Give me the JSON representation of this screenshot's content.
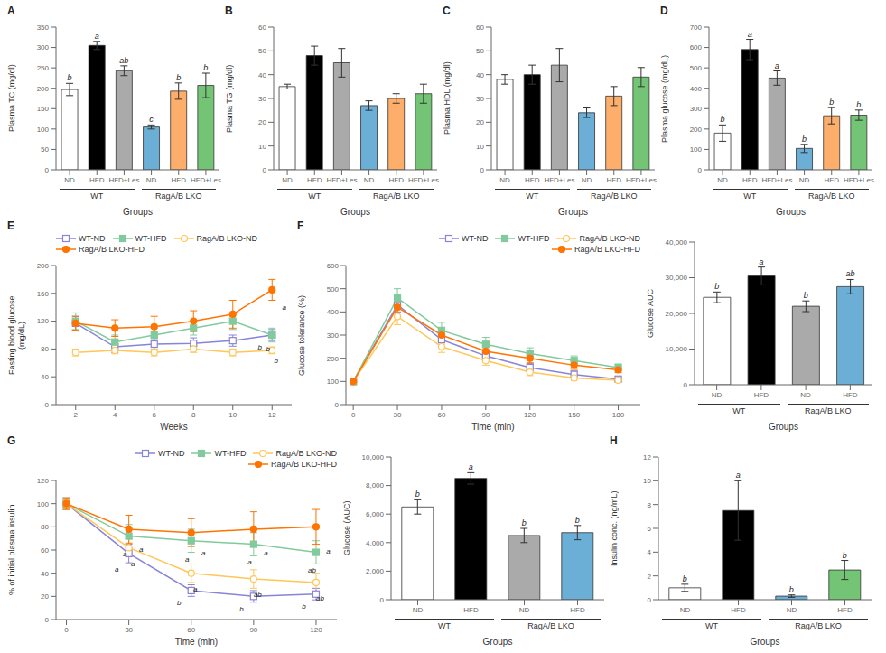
{
  "chart_data": [
    {
      "type": "bar",
      "title": "A",
      "ylabel": "Plasma TC (mg/dl)",
      "xlabel": "Groups",
      "categories": [
        "ND",
        "HFD",
        "HFD+Les",
        "ND",
        "HFD",
        "HFD+Les"
      ],
      "values": [
        197,
        305,
        243,
        105,
        193,
        207
      ],
      "errors": [
        15,
        10,
        12,
        5,
        20,
        30
      ],
      "annotations": [
        "b",
        "a",
        "ab",
        "c",
        "b",
        "b"
      ],
      "groups": [
        "WT",
        "RagA/B LKO"
      ],
      "colors": [
        "#ffffff",
        "#000000",
        "#aaaaaa",
        "#6baed6",
        "#fdae6b",
        "#74c476"
      ],
      "ylim": [
        0,
        350
      ],
      "yticks": [
        0,
        50,
        100,
        150,
        200,
        250,
        300,
        350
      ]
    },
    {
      "type": "bar",
      "title": "B",
      "ylabel": "Plasma TG (mg/dl)",
      "xlabel": "Groups",
      "categories": [
        "ND",
        "HFD",
        "HFD+Les",
        "ND",
        "HFD",
        "HFD+Les"
      ],
      "values": [
        35,
        48,
        45,
        27,
        30,
        32
      ],
      "errors": [
        1,
        4,
        6,
        2,
        2,
        4
      ],
      "groups": [
        "WT",
        "RagA/B LKO"
      ],
      "colors": [
        "#ffffff",
        "#000000",
        "#aaaaaa",
        "#6baed6",
        "#fdae6b",
        "#74c476"
      ],
      "ylim": [
        0,
        60
      ],
      "yticks": [
        0,
        10,
        20,
        30,
        40,
        50,
        60
      ]
    },
    {
      "type": "bar",
      "title": "C",
      "ylabel": "Plasma HDL (mg/dl)",
      "xlabel": "Groups",
      "categories": [
        "ND",
        "HFD",
        "HFD+Les",
        "ND",
        "HFD",
        "HFD+Les"
      ],
      "values": [
        38,
        40,
        44,
        24,
        31,
        39
      ],
      "errors": [
        2,
        4,
        7,
        2,
        4,
        4
      ],
      "groups": [
        "WT",
        "RagA/B LKO"
      ],
      "colors": [
        "#ffffff",
        "#000000",
        "#aaaaaa",
        "#6baed6",
        "#fdae6b",
        "#74c476"
      ],
      "ylim": [
        0,
        60
      ],
      "yticks": [
        0,
        10,
        20,
        30,
        40,
        50,
        60
      ]
    },
    {
      "type": "bar",
      "title": "D",
      "ylabel": "Plasma glucose (mg/dL)",
      "xlabel": "Groups",
      "categories": [
        "ND",
        "HFD",
        "HFD+Les",
        "ND",
        "HFD",
        "HFD+Les"
      ],
      "values": [
        180,
        590,
        450,
        105,
        265,
        268
      ],
      "errors": [
        40,
        50,
        35,
        20,
        40,
        25
      ],
      "annotations": [
        "b",
        "a",
        "a",
        "b",
        "b",
        "b"
      ],
      "groups": [
        "WT",
        "RagA/B LKO"
      ],
      "colors": [
        "#ffffff",
        "#000000",
        "#aaaaaa",
        "#6baed6",
        "#fdae6b",
        "#74c476"
      ],
      "ylim": [
        0,
        700
      ],
      "yticks": [
        0,
        100,
        200,
        300,
        400,
        500,
        600,
        700
      ]
    },
    {
      "type": "line",
      "title": "E",
      "ylabel": "Fasting blood glucose\n(mg/dL)",
      "xlabel": "Weeks",
      "x": [
        2,
        4,
        6,
        8,
        10,
        12
      ],
      "legend": "upper left",
      "series": [
        {
          "name": "WT-ND",
          "color": "#8884d8",
          "marker": "square_open",
          "values": [
            117,
            83,
            87,
            88,
            92,
            100
          ],
          "errors": [
            10,
            8,
            8,
            8,
            8,
            8
          ],
          "annotations": [
            null,
            null,
            null,
            null,
            null,
            "b"
          ]
        },
        {
          "name": "WT-HFD",
          "color": "#82ca9d",
          "marker": "square",
          "values": [
            120,
            90,
            100,
            110,
            120,
            100
          ],
          "errors": [
            12,
            10,
            10,
            10,
            12,
            10
          ],
          "annotations": [
            null,
            null,
            null,
            null,
            null,
            "b"
          ]
        },
        {
          "name": "RagA/B LKO-ND",
          "color": "#ffc658",
          "marker": "circle_open",
          "values": [
            75,
            78,
            75,
            80,
            75,
            78
          ],
          "errors": [
            5,
            5,
            5,
            5,
            5,
            5
          ],
          "annotations": [
            null,
            null,
            null,
            null,
            null,
            "b"
          ]
        },
        {
          "name": "RagA/B LKO-HFD",
          "color": "#ff7300",
          "marker": "circle",
          "values": [
            117,
            110,
            112,
            120,
            130,
            165
          ],
          "errors": [
            10,
            12,
            15,
            15,
            20,
            15
          ],
          "annotations": [
            null,
            null,
            null,
            null,
            null,
            "a"
          ]
        }
      ],
      "xlim": [
        1,
        13
      ],
      "xticks": [
        2,
        4,
        6,
        8,
        10,
        12
      ],
      "ylim": [
        0,
        200
      ],
      "yticks": [
        0,
        40,
        80,
        120,
        160,
        200
      ]
    },
    {
      "type": "line",
      "title": "F",
      "ylabel": "Glucose tolerance (%)",
      "xlabel": "Time (min)",
      "x": [
        0,
        30,
        60,
        90,
        120,
        150,
        180
      ],
      "legend": "upper right",
      "series": [
        {
          "name": "WT-ND",
          "color": "#8884d8",
          "marker": "square_open",
          "values": [
            100,
            430,
            280,
            210,
            160,
            130,
            110
          ],
          "errors": [
            5,
            30,
            30,
            25,
            20,
            15,
            10
          ]
        },
        {
          "name": "WT-HFD",
          "color": "#82ca9d",
          "marker": "square",
          "values": [
            100,
            460,
            320,
            260,
            220,
            190,
            160
          ],
          "errors": [
            5,
            40,
            35,
            30,
            25,
            20,
            15
          ]
        },
        {
          "name": "RagA/B LKO-ND",
          "color": "#ffc658",
          "marker": "circle_open",
          "values": [
            100,
            380,
            250,
            190,
            140,
            115,
            105
          ],
          "errors": [
            5,
            35,
            25,
            20,
            15,
            10,
            8
          ]
        },
        {
          "name": "RagA/B LKO-HFD",
          "color": "#ff7300",
          "marker": "circle",
          "values": [
            100,
            420,
            300,
            230,
            200,
            170,
            150
          ],
          "errors": [
            5,
            40,
            30,
            25,
            22,
            18,
            12
          ]
        }
      ],
      "xlim": [
        -5,
        195
      ],
      "xticks": [
        0,
        30,
        60,
        90,
        120,
        150,
        180
      ],
      "ylim": [
        0,
        600
      ],
      "yticks": [
        0,
        100,
        200,
        300,
        400,
        500,
        600
      ]
    },
    {
      "type": "bar",
      "ylabel": "Glucose AUC",
      "xlabel": "Groups",
      "categories": [
        "ND",
        "HFD",
        "ND",
        "HFD"
      ],
      "values": [
        24500,
        30500,
        22000,
        27500
      ],
      "errors": [
        1500,
        2500,
        1500,
        2000
      ],
      "annotations": [
        "b",
        "a",
        "b",
        "ab"
      ],
      "groups": [
        "WT",
        "RagA/B LKO"
      ],
      "colors": [
        "#ffffff",
        "#000000",
        "#aaaaaa",
        "#6baed6"
      ],
      "ylim": [
        0,
        40000
      ],
      "yticks": [
        0,
        {
          "value": 10000,
          "label": "10,000"
        },
        {
          "value": 20000,
          "label": "20,000"
        },
        {
          "value": 30000,
          "label": "30,000"
        },
        {
          "value": 40000,
          "label": "40,000"
        }
      ]
    },
    {
      "type": "line",
      "title": "G",
      "ylabel": "% of initial plasma insulin",
      "xlabel": "Time (min)",
      "x": [
        0,
        30,
        60,
        90,
        120
      ],
      "legend": "upper right",
      "series": [
        {
          "name": "WT-ND",
          "color": "#8884d8",
          "marker": "square_open",
          "values": [
            100,
            57,
            25,
            20,
            22
          ],
          "errors": [
            5,
            8,
            5,
            5,
            5
          ],
          "annotations": [
            null,
            "a",
            "b",
            "b",
            "b"
          ]
        },
        {
          "name": "WT-HFD",
          "color": "#82ca9d",
          "marker": "square",
          "values": [
            100,
            72,
            68,
            65,
            58
          ],
          "errors": [
            5,
            10,
            10,
            10,
            10
          ],
          "annotations": [
            null,
            "a",
            "a",
            "a",
            "ab"
          ]
        },
        {
          "name": "RagA/B LKO-ND",
          "color": "#ffc658",
          "marker": "circle_open",
          "values": [
            100,
            62,
            40,
            35,
            32
          ],
          "errors": [
            5,
            8,
            8,
            8,
            8
          ],
          "annotations": [
            null,
            "a",
            "a",
            "ab",
            "ab"
          ]
        },
        {
          "name": "RagA/B LKO-HFD",
          "color": "#ff7300",
          "marker": "circle",
          "values": [
            100,
            78,
            75,
            78,
            80
          ],
          "errors": [
            5,
            12,
            12,
            15,
            15
          ],
          "annotations": [
            null,
            "a",
            "a",
            "a",
            "a"
          ]
        }
      ],
      "xlim": [
        -5,
        130
      ],
      "xticks": [
        0,
        30,
        60,
        90,
        120
      ],
      "ylim": [
        0,
        120
      ],
      "yticks": [
        0,
        20,
        40,
        60,
        80,
        100,
        120
      ]
    },
    {
      "type": "bar",
      "ylabel": "Glucose (AUC)",
      "xlabel": "Groups",
      "categories": [
        "ND",
        "HFD",
        "ND",
        "HFD"
      ],
      "values": [
        6500,
        8500,
        4500,
        4700
      ],
      "errors": [
        500,
        400,
        500,
        500
      ],
      "annotations": [
        "b",
        "a",
        "b",
        "b"
      ],
      "groups": [
        "WT",
        "RagA/B LKO"
      ],
      "colors": [
        "#ffffff",
        "#000000",
        "#aaaaaa",
        "#6baed6"
      ],
      "ylim": [
        0,
        10000
      ],
      "yticks": [
        0,
        {
          "value": 2000,
          "label": "2,000"
        },
        {
          "value": 4000,
          "label": "4,000"
        },
        {
          "value": 6000,
          "label": "6,000"
        },
        {
          "value": 8000,
          "label": "8,000"
        },
        {
          "value": 10000,
          "label": "10,000"
        }
      ]
    },
    {
      "type": "bar",
      "title": "H",
      "ylabel": "Insulin conc. (ng/mL)",
      "xlabel": "Groups",
      "categories": [
        "ND",
        "HFD",
        "ND",
        "HFD"
      ],
      "values": [
        1.0,
        7.5,
        0.3,
        2.5
      ],
      "errors": [
        0.3,
        2.5,
        0.1,
        0.8
      ],
      "annotations": [
        "b",
        "a",
        "b",
        "b"
      ],
      "groups": [
        "WT",
        "RagA/B LKO"
      ],
      "colors": [
        "#ffffff",
        "#000000",
        "#6baed6",
        "#74c476"
      ],
      "ylim": [
        0,
        12
      ],
      "yticks": [
        0,
        2,
        4,
        6,
        8,
        10,
        12
      ]
    }
  ]
}
